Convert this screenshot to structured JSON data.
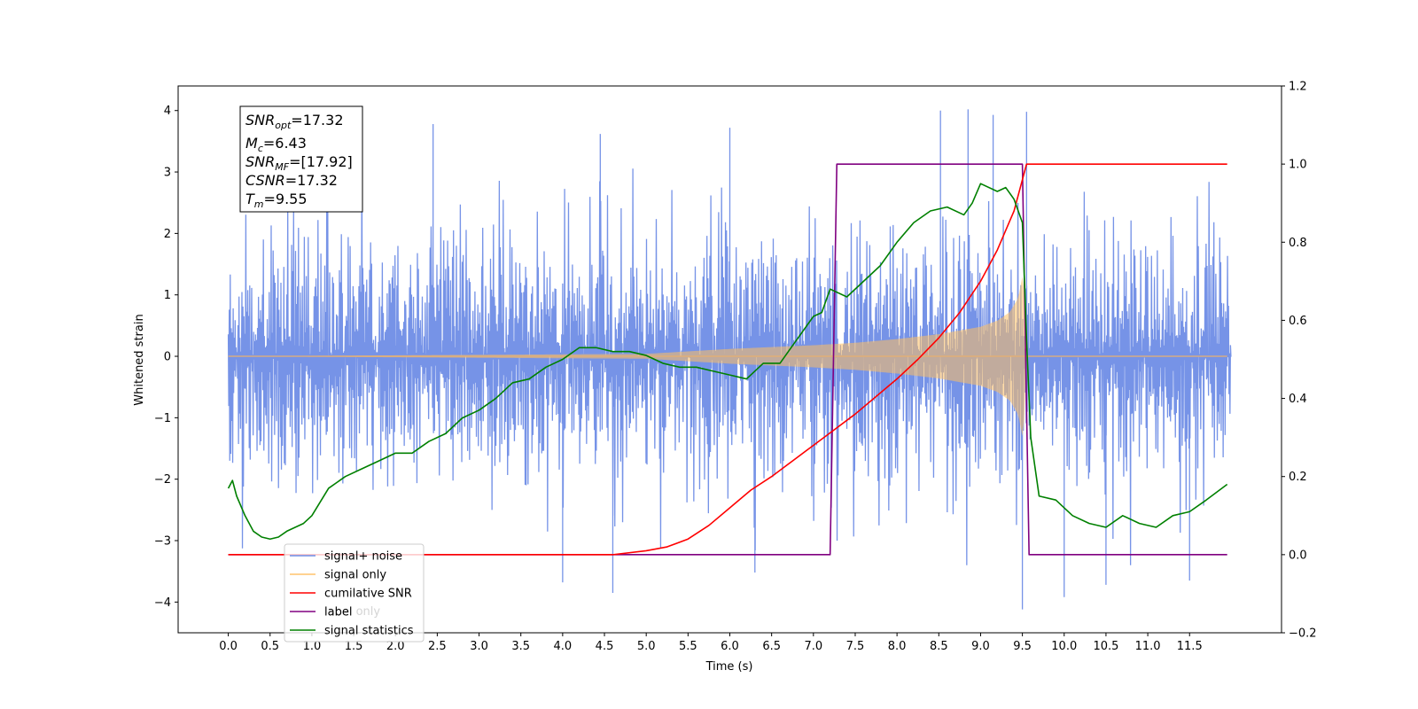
{
  "chart_data": {
    "type": "line",
    "xlabel": "Time (s)",
    "ylabel": "Whitened strain",
    "xlim": [
      -0.6,
      12.6
    ],
    "ylim": [
      -4.5,
      4.4
    ],
    "y2lim": [
      -0.2,
      1.2
    ],
    "x_ticks": [
      0.0,
      0.5,
      1.0,
      1.5,
      2.0,
      2.5,
      3.0,
      3.5,
      4.0,
      4.5,
      5.0,
      5.5,
      6.0,
      6.5,
      7.0,
      7.5,
      8.0,
      8.5,
      9.0,
      9.5,
      10.0,
      10.5,
      11.0,
      11.5
    ],
    "x_tick_labels": [
      "0.0",
      "0.5",
      "1.0",
      "1.5",
      "2.0",
      "2.5",
      "3.0",
      "3.5",
      "4.0",
      "4.5",
      "5.0",
      "5.5",
      "6.0",
      "6.5",
      "7.0",
      "7.5",
      "8.0",
      "8.5",
      "9.0",
      "9.5",
      "10.0",
      "10.5",
      "11.0",
      "11.5"
    ],
    "y_ticks": [
      4,
      3,
      2,
      1,
      0,
      -1,
      -2,
      -3,
      -4
    ],
    "y_tick_labels": [
      "4",
      "3",
      "2",
      "1",
      "0",
      "−1",
      "−2",
      "−3",
      "−4"
    ],
    "y2_ticks": [
      1.2,
      1.0,
      0.8,
      0.6,
      0.4,
      0.2,
      0.0,
      -0.2
    ],
    "y2_tick_labels": [
      "1.2",
      "1.0",
      "0.8",
      "0.6",
      "0.4",
      "0.2",
      "0.0",
      "−0.2"
    ],
    "annotation": {
      "snr_opt": {
        "name": "SNR",
        "sub": "opt",
        "value": "=17.32"
      },
      "mc": {
        "name": "M",
        "sub": "c",
        "value": "=6.43"
      },
      "snr_mf": {
        "name": "SNR",
        "sub": "MF",
        "value": "=[17.92]"
      },
      "csnr": {
        "name": "CSNR",
        "value": "=17.32"
      },
      "tm": {
        "name": "T",
        "sub": "m",
        "value": "=9.55"
      }
    },
    "legend": {
      "placement": "lower-left",
      "entries": [
        {
          "label": "signal+ noise",
          "color": "#6f8de6"
        },
        {
          "label": "signal only",
          "color": "#ffc36b"
        },
        {
          "label": "cumilative SNR",
          "color": "#ff0000"
        },
        {
          "label": "label",
          "color": "#800080"
        },
        {
          "label": "signal statistics",
          "color": "#008000"
        }
      ],
      "hidden_text": "label only"
    },
    "series": [
      {
        "name": "signal+ noise",
        "axis": "left",
        "color": "#6f8de6",
        "noise_std": 1.0,
        "x_range": [
          0.0,
          12.0
        ],
        "notable_peaks": [
          {
            "x": 2.45,
            "y": 3.78
          },
          {
            "x": 4.45,
            "y": 3.62
          },
          {
            "x": 6.0,
            "y": 3.72
          },
          {
            "x": 8.52,
            "y": 4.0
          },
          {
            "x": 8.85,
            "y": 4.02
          },
          {
            "x": 9.15,
            "y": 3.93
          },
          {
            "x": 9.55,
            "y": 3.98
          },
          {
            "x": 4.0,
            "y": -3.68
          },
          {
            "x": 4.6,
            "y": -3.85
          },
          {
            "x": 6.3,
            "y": -3.52
          },
          {
            "x": 9.5,
            "y": -4.12
          },
          {
            "x": 10.0,
            "y": -3.92
          },
          {
            "x": 10.5,
            "y": -3.72
          },
          {
            "x": 11.5,
            "y": -3.65
          }
        ]
      },
      {
        "name": "signal only",
        "axis": "left",
        "color": "#ffc36b",
        "envelope_x": [
          0.0,
          5.0,
          6.0,
          7.0,
          7.5,
          8.0,
          8.5,
          9.0,
          9.2,
          9.35,
          9.45,
          9.5,
          9.52,
          9.55
        ],
        "envelope_y": [
          0.0,
          0.04,
          0.12,
          0.18,
          0.22,
          0.28,
          0.36,
          0.48,
          0.58,
          0.72,
          0.95,
          1.3,
          1.05,
          0.0
        ]
      },
      {
        "name": "cumilative SNR",
        "axis": "right",
        "color": "#ff0000",
        "x": [
          0.0,
          4.6,
          5.0,
          5.25,
          5.5,
          5.75,
          6.0,
          6.25,
          6.5,
          6.75,
          7.0,
          7.25,
          7.5,
          7.75,
          8.0,
          8.25,
          8.5,
          8.75,
          9.0,
          9.2,
          9.4,
          9.5,
          9.55,
          11.95
        ],
        "y": [
          0.0,
          0.0,
          0.01,
          0.02,
          0.04,
          0.075,
          0.12,
          0.165,
          0.2,
          0.24,
          0.28,
          0.32,
          0.36,
          0.405,
          0.45,
          0.5,
          0.555,
          0.62,
          0.7,
          0.78,
          0.88,
          0.96,
          1.0,
          1.0
        ]
      },
      {
        "name": "label",
        "axis": "right",
        "color": "#800080",
        "x": [
          0.0,
          7.2,
          7.28,
          9.5,
          9.58,
          11.95
        ],
        "y": [
          0.0,
          0.0,
          1.0,
          1.0,
          0.0,
          0.0
        ]
      },
      {
        "name": "signal statistics",
        "axis": "right",
        "color": "#008000",
        "x": [
          0.0,
          0.05,
          0.1,
          0.2,
          0.3,
          0.4,
          0.5,
          0.6,
          0.7,
          0.8,
          0.9,
          1.0,
          1.2,
          1.4,
          1.6,
          1.8,
          2.0,
          2.2,
          2.4,
          2.6,
          2.8,
          3.0,
          3.2,
          3.4,
          3.6,
          3.8,
          4.0,
          4.2,
          4.4,
          4.6,
          4.8,
          5.0,
          5.2,
          5.4,
          5.6,
          5.8,
          6.0,
          6.2,
          6.4,
          6.6,
          6.8,
          7.0,
          7.1,
          7.2,
          7.4,
          7.6,
          7.8,
          8.0,
          8.2,
          8.4,
          8.6,
          8.8,
          8.9,
          9.0,
          9.2,
          9.3,
          9.4,
          9.45,
          9.5,
          9.55,
          9.6,
          9.7,
          9.9,
          10.1,
          10.3,
          10.5,
          10.7,
          10.9,
          11.1,
          11.3,
          11.5,
          11.7,
          11.95
        ],
        "y": [
          0.17,
          0.19,
          0.15,
          0.1,
          0.06,
          0.045,
          0.04,
          0.045,
          0.06,
          0.07,
          0.08,
          0.1,
          0.17,
          0.2,
          0.22,
          0.24,
          0.26,
          0.26,
          0.29,
          0.31,
          0.35,
          0.37,
          0.4,
          0.44,
          0.45,
          0.48,
          0.5,
          0.53,
          0.53,
          0.52,
          0.52,
          0.51,
          0.49,
          0.48,
          0.48,
          0.47,
          0.46,
          0.45,
          0.49,
          0.49,
          0.55,
          0.61,
          0.62,
          0.68,
          0.66,
          0.7,
          0.74,
          0.8,
          0.85,
          0.88,
          0.89,
          0.87,
          0.9,
          0.95,
          0.93,
          0.94,
          0.91,
          0.88,
          0.85,
          0.55,
          0.3,
          0.15,
          0.14,
          0.1,
          0.08,
          0.07,
          0.1,
          0.08,
          0.07,
          0.1,
          0.11,
          0.14,
          0.18
        ]
      }
    ]
  }
}
